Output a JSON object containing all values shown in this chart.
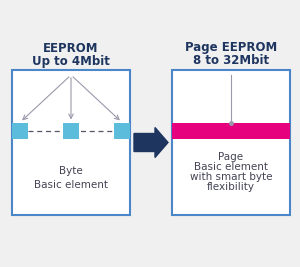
{
  "bg_color": "#f0f0f0",
  "box_border_color": "#4a86c8",
  "box_fill_color": "#ffffff",
  "left_title_line1": "EEPROM",
  "left_title_line2": "Up to 4Mbit",
  "right_title_line1": "Page EEPROM",
  "right_title_line2": "8 to 32Mbit",
  "left_label_line1": "Byte",
  "left_label_line2": "Basic element",
  "right_label_line1": "Page",
  "right_label_line2": "Basic element",
  "right_label_line3": "with smart byte",
  "right_label_line4": "flexibility",
  "byte_color": "#5bbcdb",
  "page_color": "#e6007e",
  "arrow_color": "#1e3560",
  "line_color": "#9999aa",
  "title_color": "#1e3560",
  "label_color": "#444455",
  "title_fontsize": 8.5,
  "label_fontsize": 7.5
}
